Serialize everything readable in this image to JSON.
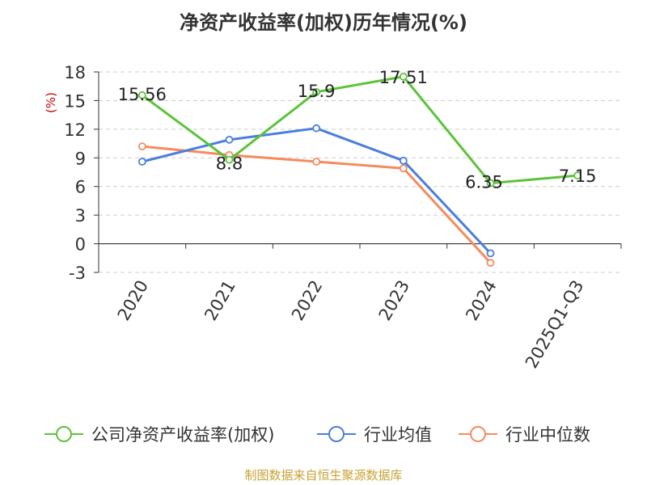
{
  "title": "净资产收益率(加权)历年情况(%)",
  "footer": "制图数据来自恒生聚源数据库",
  "colors": {
    "company": "#5cc33a",
    "industry_avg": "#4a7fdc",
    "industry_median": "#f58b5e",
    "axis_unit": "#cc0000",
    "footer": "#c8a235",
    "grid": "#cccccc",
    "axis": "#333333"
  },
  "chart_data": {
    "type": "line",
    "title": "净资产收益率(加权)历年情况(%)",
    "ylabel": "(%)",
    "xlabel": "",
    "ylim": [
      -3,
      18
    ],
    "yticks": [
      18,
      15,
      12,
      9,
      6,
      3,
      0,
      -3
    ],
    "grid": true,
    "categories": [
      "2020",
      "2021",
      "2022",
      "2023",
      "2024",
      "2025Q1-Q3"
    ],
    "series": [
      {
        "name": "公司净资产收益率(加权)",
        "color": "#5cc33a",
        "values": [
          15.56,
          8.8,
          15.9,
          17.51,
          6.35,
          7.15
        ],
        "labels": [
          "15.56",
          "8.8",
          "15.9",
          "17.51",
          "6.35",
          "7.15"
        ]
      },
      {
        "name": "行业均值",
        "color": "#4a7fdc",
        "values": [
          8.6,
          10.9,
          12.1,
          8.7,
          -1.0,
          null
        ]
      },
      {
        "name": "行业中位数",
        "color": "#f58b5e",
        "values": [
          10.2,
          9.3,
          8.6,
          7.9,
          -2.0,
          null
        ]
      }
    ],
    "legend_position": "bottom"
  }
}
